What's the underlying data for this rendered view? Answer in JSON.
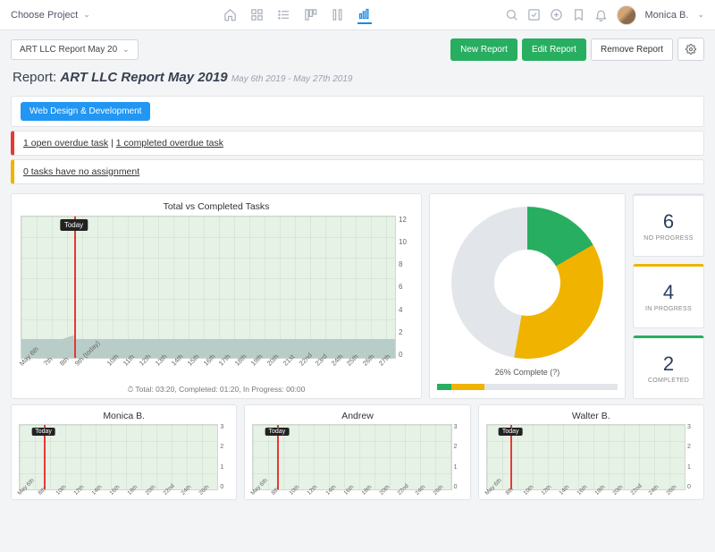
{
  "top": {
    "project_selector": "Choose Project",
    "username": "Monica B."
  },
  "toolbar": {
    "dropdown": "ART LLC Report May 20",
    "new_report": "New Report",
    "edit_report": "Edit Report",
    "remove_report": "Remove Report"
  },
  "title": {
    "prefix": "Report:",
    "name": "ART LLC Report May 2019",
    "range": "May 6th 2019 - May 27th 2019"
  },
  "banners": {
    "tag": "Web Design & Development",
    "overdue_open": "1 open overdue task",
    "overdue_sep": " | ",
    "overdue_completed": "1 completed overdue task",
    "unassigned": "0 tasks have no assignment"
  },
  "main_chart": {
    "type": "area",
    "title": "Total vs Completed Tasks",
    "today_label": "Today",
    "today_index": 3,
    "x_labels": [
      "May 6th",
      "7th",
      "8th",
      "9th (today)",
      "10th",
      "11th",
      "12th",
      "13th",
      "14th",
      "15th",
      "16th",
      "17th",
      "18th",
      "19th",
      "20th",
      "21st",
      "22nd",
      "23rd",
      "24th",
      "25th",
      "26th",
      "27th"
    ],
    "y_ticks": [
      0,
      2,
      4,
      6,
      8,
      10,
      12
    ],
    "ylim": [
      0,
      12
    ],
    "series_total": {
      "color": "#e6f2e6",
      "values": [
        12,
        12,
        12,
        12,
        12,
        12,
        12,
        12,
        12,
        12,
        12,
        12,
        12,
        12,
        12,
        12,
        12,
        12,
        12,
        12,
        12,
        12
      ]
    },
    "series_completed": {
      "color": "#b8ccc8",
      "values": [
        0,
        1,
        1.3,
        1.6,
        1.6,
        1.6,
        1.6,
        1.6,
        1.6,
        1.6,
        1.6,
        1.6,
        1.6,
        1.6,
        1.6,
        1.6,
        1.6,
        1.6,
        1.6,
        1.6,
        1.6,
        1.6
      ]
    },
    "today_line_color": "#e53935",
    "grid_color": "#d3ddd3",
    "footer": "⏱ Total: 03:20, Completed: 01:20, In Progress: 00:00"
  },
  "donut": {
    "type": "pie",
    "slices": [
      {
        "label": "Completed",
        "value": 17,
        "color": "#27ae60"
      },
      {
        "label": "In Progress",
        "value": 36,
        "color": "#efb300"
      },
      {
        "label": "No Progress",
        "value": 47,
        "color": "#e2e5ea"
      }
    ],
    "caption": "26% Complete (?)",
    "progress": {
      "green_pct": 8,
      "yellow_pct": 18,
      "bg": "#e2e5ea"
    }
  },
  "stats": [
    {
      "value": "6",
      "label": "NO PROGRESS",
      "accent": "#e2e5ea"
    },
    {
      "value": "4",
      "label": "IN PROGRESS",
      "accent": "#efb300"
    },
    {
      "value": "2",
      "label": "COMPLETED",
      "accent": "#27ae60"
    }
  ],
  "people": [
    {
      "name": "Monica B.",
      "today_pct": 12,
      "x": [
        "May 6th",
        "8th",
        "10th",
        "12th",
        "14th",
        "16th",
        "18th",
        "20th",
        "22nd",
        "24th",
        "26th"
      ],
      "y": [
        0,
        1,
        2,
        3
      ]
    },
    {
      "name": "Andrew",
      "today_pct": 12,
      "x": [
        "May 6th",
        "8th",
        "10th",
        "12th",
        "14th",
        "16th",
        "18th",
        "20th",
        "22nd",
        "24th",
        "26th"
      ],
      "y": [
        0,
        1,
        2,
        3
      ]
    },
    {
      "name": "Walter B.",
      "today_pct": 12,
      "x": [
        "May 6th",
        "8th",
        "10th",
        "12th",
        "14th",
        "16th",
        "18th",
        "20th",
        "22nd",
        "24th",
        "26th"
      ],
      "y": [
        0,
        1,
        2,
        3
      ]
    }
  ],
  "colors": {
    "primary_blue": "#2196f3",
    "green": "#27ae60",
    "yellow": "#efb300",
    "red": "#e53935",
    "grey": "#e2e5ea"
  }
}
